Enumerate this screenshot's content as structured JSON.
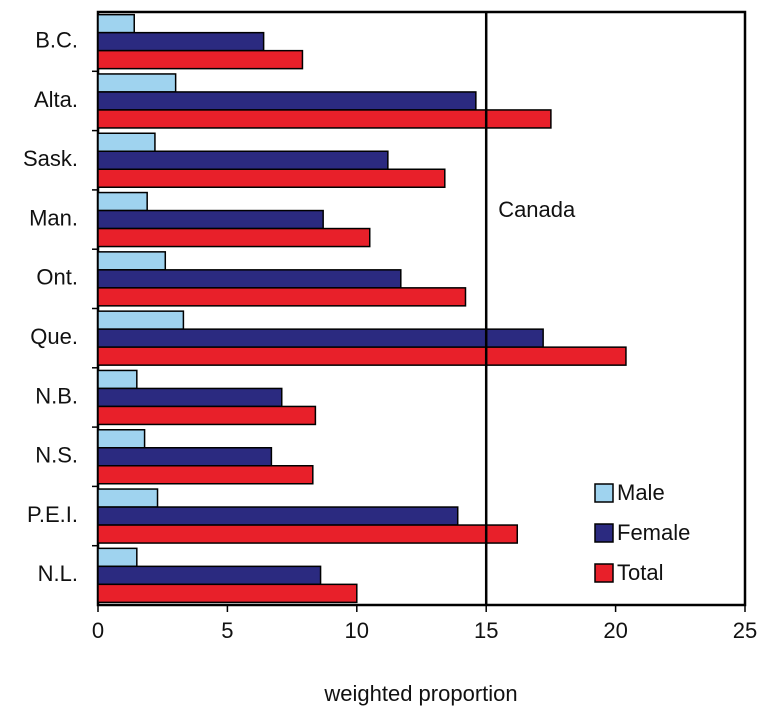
{
  "chart_data": {
    "type": "bar",
    "orientation": "horizontal",
    "xlabel": "weighted proportion",
    "categories": [
      "B.C.",
      "Alta.",
      "Sask.",
      "Man.",
      "Ont.",
      "Que.",
      "N.B.",
      "N.S.",
      "P.E.I.",
      "N.L."
    ],
    "series": [
      {
        "name": "Male",
        "color": "#9fd3ef",
        "values": [
          1.4,
          3.0,
          2.2,
          1.9,
          2.6,
          3.3,
          1.5,
          1.8,
          2.3,
          1.5
        ]
      },
      {
        "name": "Female",
        "color": "#2b2a80",
        "values": [
          6.4,
          14.6,
          11.2,
          8.7,
          11.7,
          17.2,
          7.1,
          6.7,
          13.9,
          8.6
        ]
      },
      {
        "name": "Total",
        "color": "#e8202a",
        "values": [
          7.9,
          17.5,
          13.4,
          10.5,
          14.2,
          20.4,
          8.4,
          8.3,
          16.2,
          10.0
        ]
      }
    ],
    "xlim": [
      0,
      25
    ],
    "xticks": [
      0,
      5,
      10,
      15,
      20,
      25
    ],
    "reference_line": {
      "value": 15,
      "label": "Canada"
    },
    "legend": "lower right"
  }
}
